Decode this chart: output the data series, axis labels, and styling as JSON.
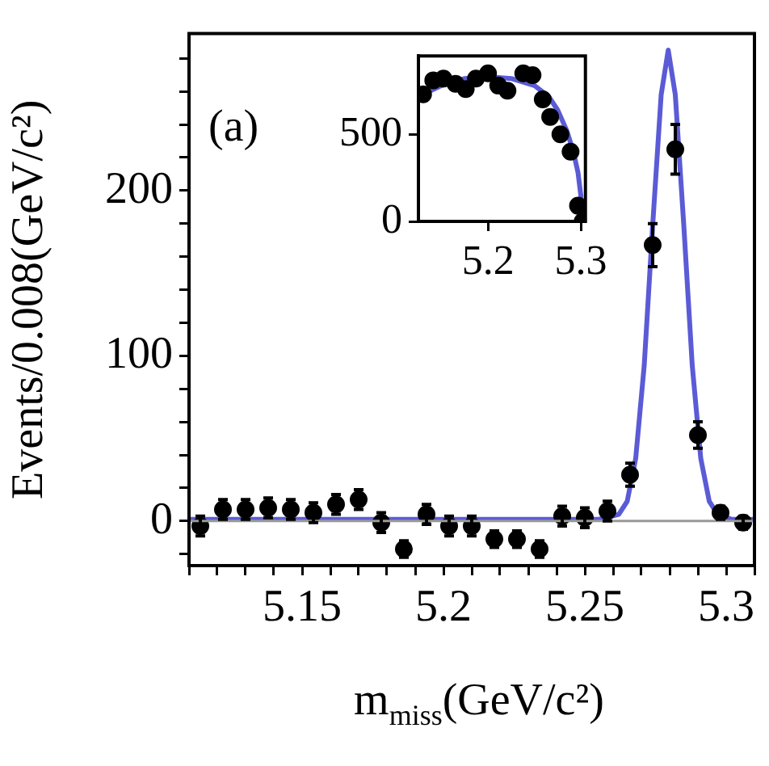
{
  "chart_data": [
    {
      "type": "scatter",
      "xlabel": "m$_{miss}$(GeV/c²)",
      "ylabel": "Events/0.008(GeV/c²)",
      "annotations": [
        "(a)"
      ],
      "legend": false,
      "xlim": [
        5.11,
        5.31
      ],
      "ylim": [
        -27,
        295
      ],
      "xticks": [
        {
          "value": 5.11,
          "label": null
        },
        {
          "value": 5.12,
          "label": null
        },
        {
          "value": 5.13,
          "label": null
        },
        {
          "value": 5.14,
          "label": null
        },
        5.15,
        {
          "value": 5.16,
          "label": null
        },
        {
          "value": 5.17,
          "label": null
        },
        {
          "value": 5.18,
          "label": null
        },
        {
          "value": 5.19,
          "label": null
        },
        5.2,
        {
          "value": 5.21,
          "label": null
        },
        {
          "value": 5.22,
          "label": null
        },
        {
          "value": 5.23,
          "label": null
        },
        {
          "value": 5.24,
          "label": null
        },
        5.25,
        {
          "value": 5.26,
          "label": null
        },
        {
          "value": 5.27,
          "label": null
        },
        {
          "value": 5.28,
          "label": null
        },
        {
          "value": 5.29,
          "label": null
        },
        5.3,
        {
          "value": 5.31,
          "label": null
        }
      ],
      "yticks": [
        {
          "value": -20,
          "label": null
        },
        0,
        {
          "value": 20,
          "label": null
        },
        {
          "value": 40,
          "label": null
        },
        {
          "value": 60,
          "label": null
        },
        {
          "value": 80,
          "label": null
        },
        100,
        {
          "value": 120,
          "label": null
        },
        {
          "value": 140,
          "label": null
        },
        {
          "value": 160,
          "label": null
        },
        {
          "value": 180,
          "label": null
        },
        200,
        {
          "value": 220,
          "label": null
        },
        {
          "value": 240,
          "label": null
        },
        {
          "value": 260,
          "label": null
        },
        {
          "value": 280,
          "label": null
        }
      ],
      "series": [
        {
          "type": "line",
          "color": "#999999",
          "x": [
            5.11,
            5.31
          ],
          "values": [
            0,
            0
          ]
        },
        {
          "marker": "circle",
          "color": "#000000",
          "x": [
            5.114,
            5.122,
            5.13,
            5.138,
            5.146,
            5.154,
            5.162,
            5.17,
            5.178,
            5.186,
            5.194,
            5.202,
            5.21,
            5.218,
            5.226,
            5.234,
            5.242,
            5.25,
            5.258,
            5.266,
            5.274,
            5.282,
            5.29,
            5.298,
            5.306
          ],
          "values": [
            -3,
            7,
            7,
            8,
            7,
            5,
            10,
            13,
            -1,
            -17,
            4,
            -3,
            -3,
            -11,
            -11,
            -17,
            3,
            2,
            6,
            28,
            167,
            225,
            52,
            5,
            -1
          ],
          "errors": [
            6,
            6,
            6,
            6,
            6,
            6,
            6,
            6,
            6,
            5,
            6,
            6,
            6,
            5,
            5,
            5,
            6,
            6,
            6,
            7,
            13,
            15,
            8,
            4,
            4
          ]
        },
        {
          "type": "line",
          "color": "#5b5bd6",
          "x": [
            5.11,
            5.2,
            5.255,
            5.262,
            5.265,
            5.268,
            5.271,
            5.274,
            5.277,
            5.2795,
            5.282,
            5.285,
            5.288,
            5.291,
            5.294,
            5.297,
            5.302,
            5.31
          ],
          "values": [
            1,
            1,
            1,
            4,
            12,
            38,
            94,
            179,
            258,
            285,
            258,
            179,
            94,
            38,
            12,
            4,
            1,
            1
          ]
        }
      ]
    },
    {
      "type": "scatter",
      "legend": false,
      "xlim": [
        5.125,
        5.305
      ],
      "ylim": [
        0,
        950
      ],
      "xticks": [
        5.2,
        5.3
      ],
      "yticks": [
        0,
        500
      ],
      "series": [
        {
          "marker": "circle",
          "color": "#000000",
          "x": [
            5.13,
            5.141,
            5.152,
            5.165,
            5.176,
            5.187,
            5.2,
            5.211,
            5.221,
            5.238,
            5.248,
            5.259,
            5.267,
            5.278,
            5.289,
            5.297,
            5.302
          ],
          "values": [
            730,
            810,
            820,
            790,
            760,
            820,
            850,
            780,
            750,
            850,
            840,
            700,
            600,
            500,
            400,
            90,
            0
          ]
        },
        {
          "type": "line",
          "color": "#5b5bd6",
          "x": [
            5.126,
            5.15,
            5.175,
            5.2,
            5.225,
            5.25,
            5.265,
            5.275,
            5.285,
            5.292,
            5.297,
            5.3,
            5.302
          ],
          "values": [
            720,
            780,
            820,
            830,
            820,
            780,
            720,
            640,
            520,
            400,
            280,
            150,
            0
          ]
        }
      ]
    }
  ]
}
